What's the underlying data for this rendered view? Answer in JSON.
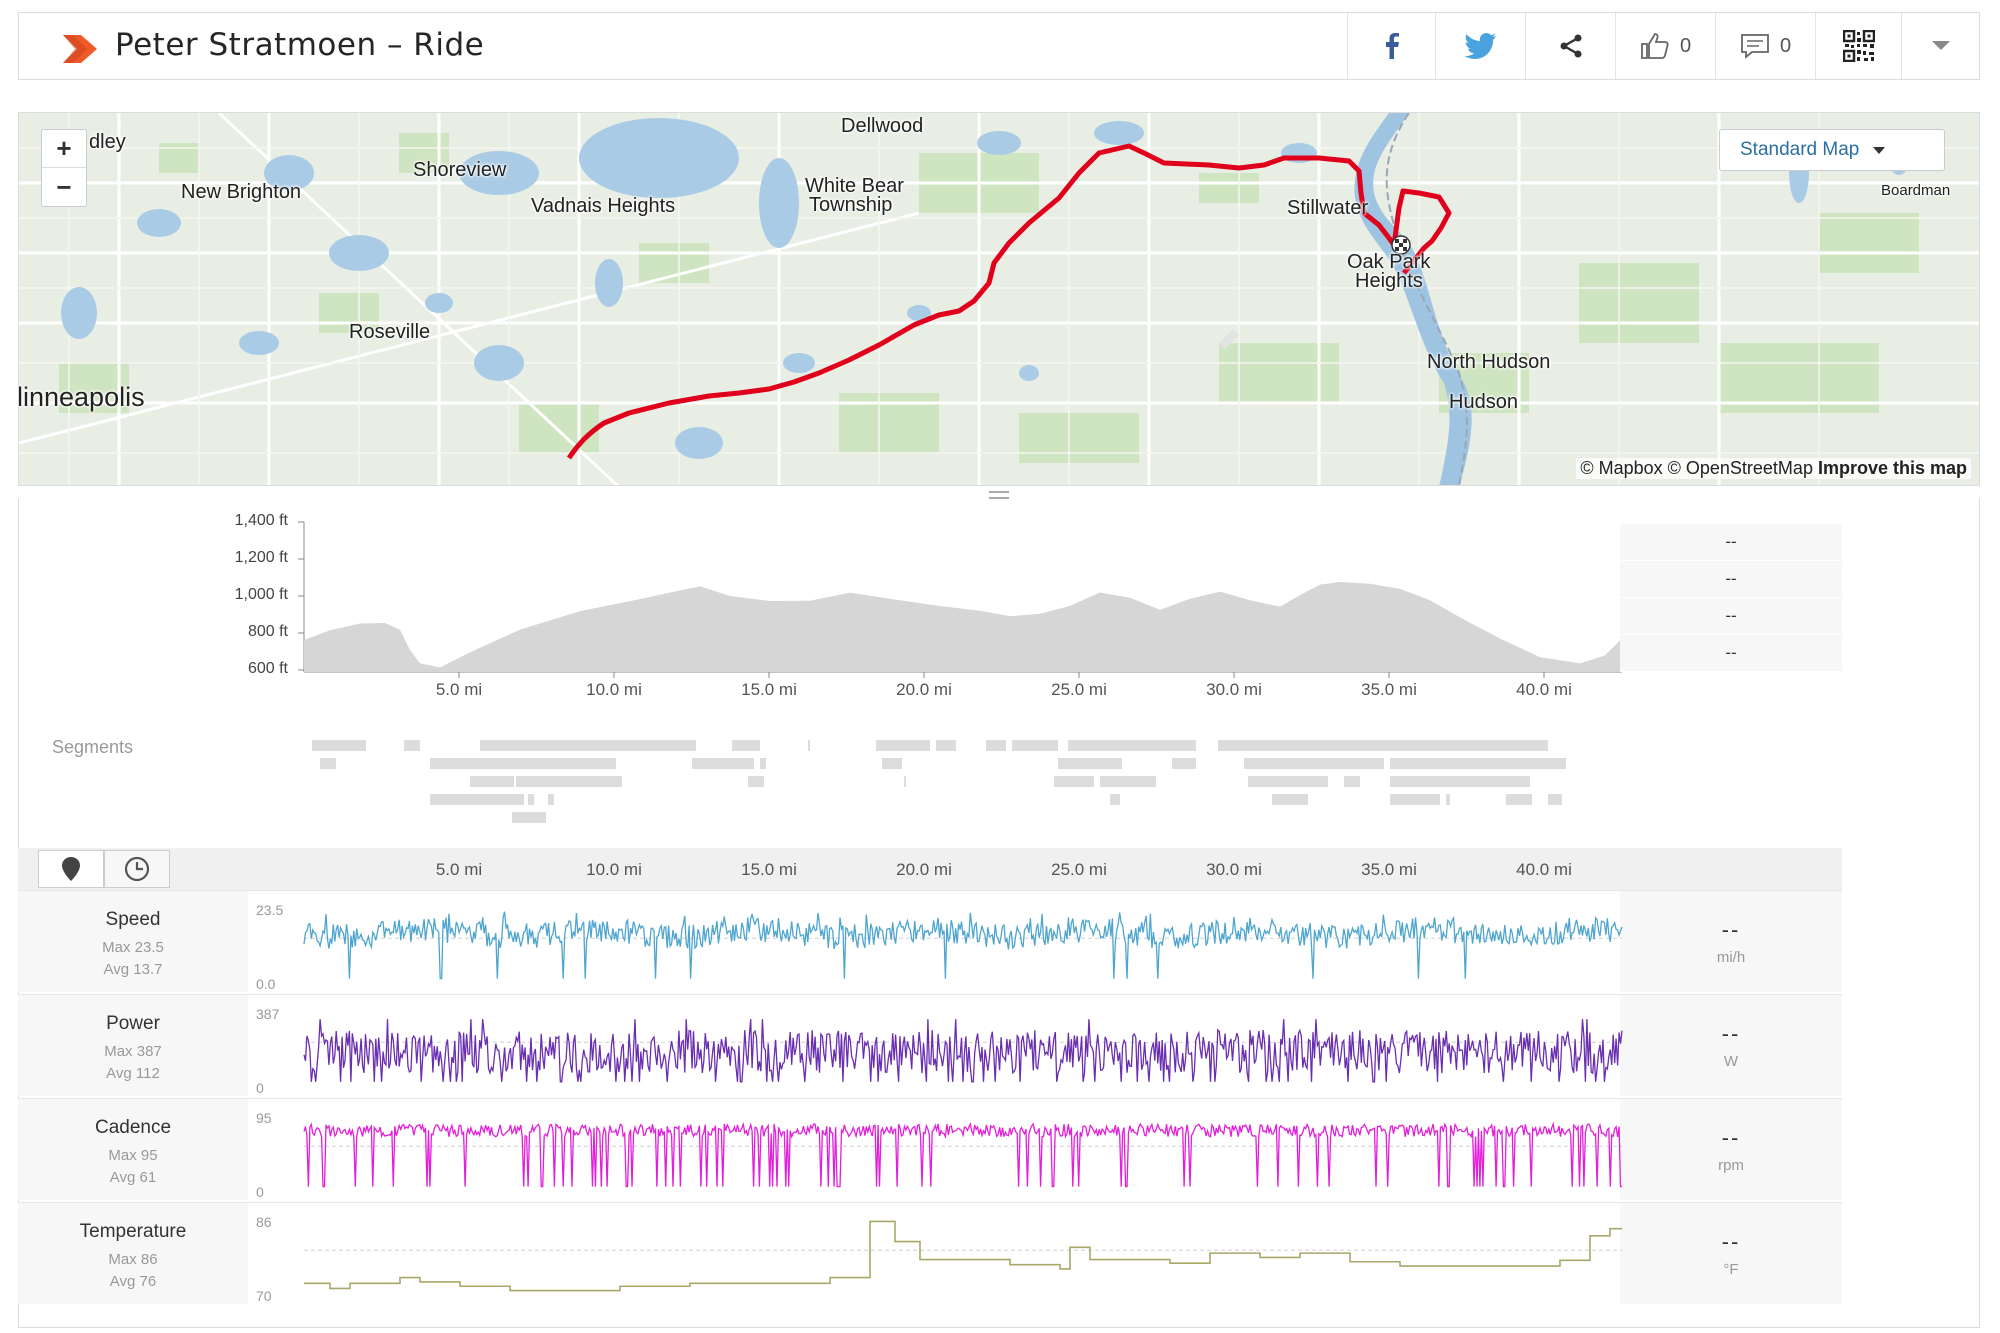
{
  "header": {
    "title": "Peter Stratmoen – Ride",
    "kudos_count": "0",
    "comments_count": "0",
    "icons": [
      "strava-logo-icon",
      "facebook-icon",
      "twitter-icon",
      "share-icon",
      "thumbs-up-icon",
      "comment-icon",
      "qr-code-icon",
      "chevron-down-icon"
    ]
  },
  "map": {
    "style_selector": "Standard Map",
    "zoom_in": "+",
    "zoom_out": "−",
    "attribution_prefix": "© Mapbox © OpenStreetMap ",
    "attribution_link": "Improve this map",
    "places": {
      "fridley": "dley",
      "dellwood": "Dellwood",
      "shoreview": "Shoreview",
      "new_brighton": "New Brighton",
      "vadnais_heights": "Vadnais Heights",
      "white_bear_1": "White Bear",
      "white_bear_2": "Township",
      "stillwater": "Stillwater",
      "oak_park_1": "Oak Park",
      "oak_park_2": "Heights",
      "boardman": "Boardman",
      "roseville": "Roseville",
      "north_hudson": "North Hudson",
      "hudson": "Hudson",
      "minneapolis": "linneapolis"
    },
    "route_color": "#e0001b"
  },
  "elevation": {
    "y_ticks": [
      "1,400 ft",
      "1,200 ft",
      "1,000 ft",
      "800 ft",
      "600 ft"
    ],
    "x_ticks": [
      "5.0 mi",
      "10.0 mi",
      "15.0 mi",
      "20.0 mi",
      "25.0 mi",
      "30.0 mi",
      "35.0 mi",
      "40.0 mi"
    ],
    "side_values": [
      "--",
      "--",
      "--",
      "--"
    ],
    "fill_color": "#d6d6d6"
  },
  "segments": {
    "label": "Segments"
  },
  "streams": {
    "x_ticks": [
      "5.0 mi",
      "10.0 mi",
      "15.0 mi",
      "20.0 mi",
      "25.0 mi",
      "30.0 mi",
      "35.0 mi",
      "40.0 mi"
    ],
    "toolbar_icons": [
      "map-pin-icon",
      "clock-icon"
    ],
    "rows": [
      {
        "name": "Speed",
        "max": "Max 23.5",
        "avg": "Avg 13.7",
        "axis_max": "23.5",
        "axis_min": "0.0",
        "value": "--",
        "unit": "mi/h",
        "color": "#4ea5d0"
      },
      {
        "name": "Power",
        "max": "Max 387",
        "avg": "Avg 112",
        "axis_max": "387",
        "axis_min": "0",
        "value": "--",
        "unit": "W",
        "color": "#6a2fb0"
      },
      {
        "name": "Cadence",
        "max": "Max 95",
        "avg": "Avg 61",
        "axis_max": "95",
        "axis_min": "0",
        "value": "--",
        "unit": "rpm",
        "color": "#e21fd9"
      },
      {
        "name": "Temperature",
        "max": "Max 86",
        "avg": "Avg 76",
        "axis_max": "86",
        "axis_min": "70",
        "value": "--",
        "unit": "°F",
        "color": "#a8a868"
      }
    ]
  }
}
